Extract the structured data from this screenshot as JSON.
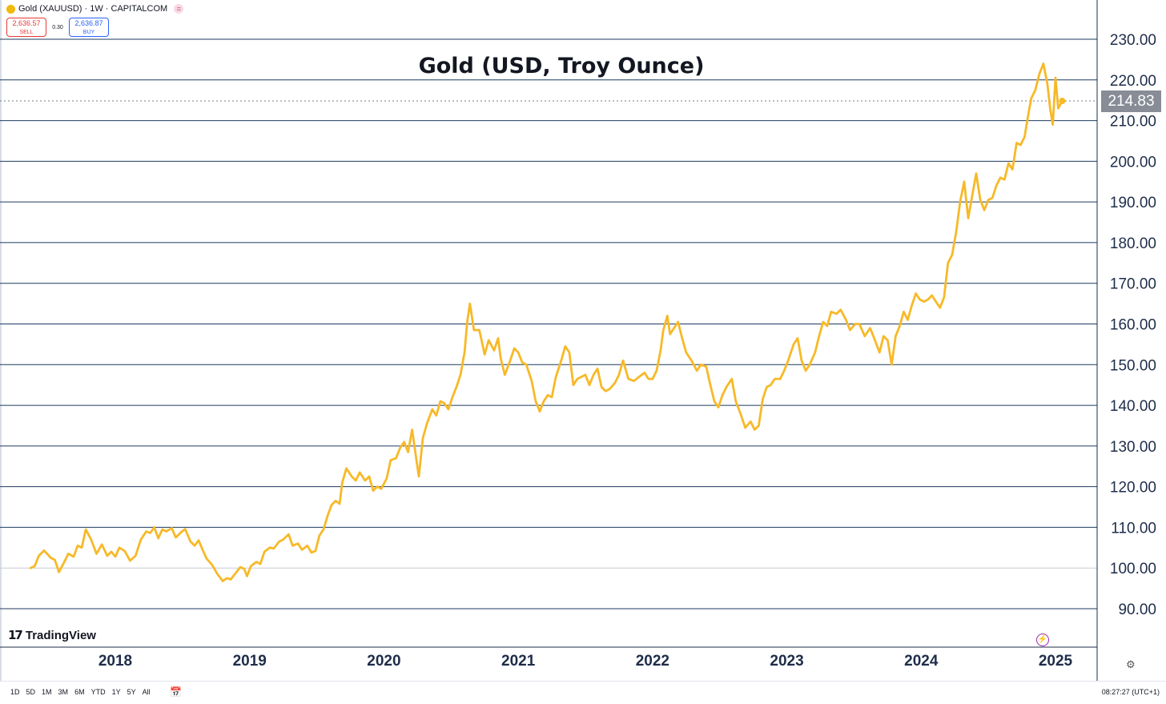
{
  "header": {
    "symbol_line": "Gold (XAUUSD) · 1W · CAPITALCOM",
    "sell_price": "2,636.57",
    "sell_label": "SELL",
    "spread": "0.30",
    "buy_price": "2,636.87",
    "buy_label": "BUY"
  },
  "chart_data": {
    "type": "line",
    "title": "Gold (USD, Troy Ounce)",
    "xlabel": "",
    "ylabel": "",
    "ylim": [
      81,
      233
    ],
    "y_ticks": [
      "230.00",
      "220.00",
      "210.00",
      "200.00",
      "190.00",
      "180.00",
      "170.00",
      "160.00",
      "150.00",
      "140.00",
      "130.00",
      "120.00",
      "110.00",
      "100.00",
      "90.00"
    ],
    "x_ticks": [
      {
        "label": "2018",
        "date": "2018.00"
      },
      {
        "label": "2019",
        "date": "2019.00"
      },
      {
        "label": "2020",
        "date": "2020.00"
      },
      {
        "label": "2021",
        "date": "2021.00"
      },
      {
        "label": "2022",
        "date": "2022.00"
      },
      {
        "label": "2023",
        "date": "2023.00"
      },
      {
        "label": "2024",
        "date": "2024.00"
      },
      {
        "label": "2025",
        "date": "2025.00"
      }
    ],
    "xlim": [
      "2017.20",
      "2025.60"
    ],
    "last_value_label": "214.83",
    "grid": true,
    "line_color": "#f7b928",
    "series": [
      {
        "name": "",
        "points": [
          [
            "2017.37",
            100.0
          ],
          [
            "2017.40",
            100.5
          ],
          [
            "2017.43",
            103.0
          ],
          [
            "2017.47",
            104.3
          ],
          [
            "2017.52",
            102.5
          ],
          [
            "2017.55",
            102.0
          ],
          [
            "2017.58",
            99.0
          ],
          [
            "2017.62",
            101.5
          ],
          [
            "2017.65",
            103.5
          ],
          [
            "2017.69",
            102.8
          ],
          [
            "2017.72",
            105.5
          ],
          [
            "2017.75",
            105.0
          ],
          [
            "2017.78",
            109.5
          ],
          [
            "2017.82",
            107.0
          ],
          [
            "2017.86",
            103.5
          ],
          [
            "2017.90",
            105.8
          ],
          [
            "2017.94",
            103.0
          ],
          [
            "2017.97",
            104.0
          ],
          [
            "2018.00",
            102.8
          ],
          [
            "2018.03",
            105.0
          ],
          [
            "2018.07",
            104.2
          ],
          [
            "2018.11",
            101.8
          ],
          [
            "2018.15",
            103.0
          ],
          [
            "2018.19",
            107.0
          ],
          [
            "2018.23",
            109.0
          ],
          [
            "2018.26",
            108.6
          ],
          [
            "2018.29",
            110.0
          ],
          [
            "2018.32",
            107.3
          ],
          [
            "2018.35",
            109.5
          ],
          [
            "2018.38",
            109.0
          ],
          [
            "2018.42",
            109.8
          ],
          [
            "2018.45",
            107.5
          ],
          [
            "2018.49",
            108.8
          ],
          [
            "2018.52",
            109.6
          ],
          [
            "2018.56",
            106.5
          ],
          [
            "2018.59",
            105.5
          ],
          [
            "2018.62",
            106.8
          ],
          [
            "2018.65",
            104.5
          ],
          [
            "2018.68",
            102.3
          ],
          [
            "2018.72",
            100.8
          ],
          [
            "2018.76",
            98.5
          ],
          [
            "2018.80",
            96.8
          ],
          [
            "2018.83",
            97.5
          ],
          [
            "2018.86",
            97.2
          ],
          [
            "2018.89",
            98.5
          ],
          [
            "2018.93",
            100.2
          ],
          [
            "2018.96",
            99.8
          ],
          [
            "2018.98",
            98.0
          ],
          [
            "2019.01",
            100.5
          ],
          [
            "2019.05",
            101.5
          ],
          [
            "2019.08",
            101.0
          ],
          [
            "2019.11",
            104.0
          ],
          [
            "2019.15",
            105.0
          ],
          [
            "2019.18",
            104.8
          ],
          [
            "2019.22",
            106.5
          ],
          [
            "2019.25",
            107.0
          ],
          [
            "2019.29",
            108.3
          ],
          [
            "2019.32",
            105.5
          ],
          [
            "2019.36",
            106.0
          ],
          [
            "2019.39",
            104.5
          ],
          [
            "2019.43",
            105.5
          ],
          [
            "2019.46",
            103.8
          ],
          [
            "2019.49",
            104.2
          ],
          [
            "2019.52",
            108.0
          ],
          [
            "2019.55",
            109.5
          ],
          [
            "2019.58",
            112.8
          ],
          [
            "2019.61",
            115.5
          ],
          [
            "2019.64",
            116.5
          ],
          [
            "2019.67",
            115.8
          ],
          [
            "2019.69",
            121.0
          ],
          [
            "2019.72",
            124.5
          ],
          [
            "2019.76",
            122.5
          ],
          [
            "2019.79",
            121.5
          ],
          [
            "2019.82",
            123.5
          ],
          [
            "2019.86",
            121.5
          ],
          [
            "2019.89",
            122.5
          ],
          [
            "2019.92",
            119.0
          ],
          [
            "2019.95",
            120.0
          ],
          [
            "2019.98",
            119.5
          ],
          [
            "2020.02",
            122.0
          ],
          [
            "2020.05",
            126.5
          ],
          [
            "2020.09",
            127.0
          ],
          [
            "2020.12",
            129.5
          ],
          [
            "2020.15",
            131.0
          ],
          [
            "2020.18",
            128.5
          ],
          [
            "2020.21",
            134.0
          ],
          [
            "2020.24",
            127.0
          ],
          [
            "2020.26",
            122.5
          ],
          [
            "2020.29",
            132.0
          ],
          [
            "2020.32",
            135.5
          ],
          [
            "2020.36",
            139.0
          ],
          [
            "2020.39",
            137.5
          ],
          [
            "2020.42",
            141.0
          ],
          [
            "2020.45",
            140.5
          ],
          [
            "2020.48",
            139.0
          ],
          [
            "2020.51",
            142.0
          ],
          [
            "2020.54",
            144.5
          ],
          [
            "2020.57",
            147.5
          ],
          [
            "2020.60",
            153.0
          ],
          [
            "2020.62",
            160.5
          ],
          [
            "2020.64",
            165.0
          ],
          [
            "2020.67",
            158.5
          ],
          [
            "2020.71",
            158.5
          ],
          [
            "2020.75",
            152.5
          ],
          [
            "2020.78",
            156.0
          ],
          [
            "2020.82",
            153.5
          ],
          [
            "2020.85",
            156.5
          ],
          [
            "2020.87",
            151.5
          ],
          [
            "2020.90",
            147.5
          ],
          [
            "2020.94",
            151.0
          ],
          [
            "2020.97",
            154.0
          ],
          [
            "2021.00",
            153.0
          ],
          [
            "2021.03",
            150.5
          ],
          [
            "2021.06",
            150.0
          ],
          [
            "2021.10",
            146.0
          ],
          [
            "2021.13",
            141.0
          ],
          [
            "2021.16",
            138.5
          ],
          [
            "2021.19",
            141.0
          ],
          [
            "2021.22",
            142.5
          ],
          [
            "2021.25",
            142.0
          ],
          [
            "2021.28",
            147.0
          ],
          [
            "2021.32",
            151.0
          ],
          [
            "2021.35",
            154.5
          ],
          [
            "2021.38",
            153.0
          ],
          [
            "2021.41",
            145.0
          ],
          [
            "2021.44",
            146.5
          ],
          [
            "2021.47",
            147.0
          ],
          [
            "2021.50",
            147.5
          ],
          [
            "2021.53",
            145.0
          ],
          [
            "2021.56",
            147.5
          ],
          [
            "2021.59",
            149.0
          ],
          [
            "2021.62",
            144.5
          ],
          [
            "2021.65",
            143.5
          ],
          [
            "2021.68",
            144.0
          ],
          [
            "2021.72",
            145.5
          ],
          [
            "2021.75",
            147.5
          ],
          [
            "2021.78",
            151.0
          ],
          [
            "2021.82",
            146.5
          ],
          [
            "2021.86",
            146.0
          ],
          [
            "2021.90",
            147.0
          ],
          [
            "2021.94",
            148.0
          ],
          [
            "2021.97",
            146.5
          ],
          [
            "2022.00",
            146.5
          ],
          [
            "2022.03",
            148.5
          ],
          [
            "2022.06",
            153.5
          ],
          [
            "2022.08",
            158.5
          ],
          [
            "2022.11",
            162.0
          ],
          [
            "2022.13",
            157.5
          ],
          [
            "2022.16",
            159.0
          ],
          [
            "2022.19",
            160.5
          ],
          [
            "2022.22",
            156.5
          ],
          [
            "2022.25",
            153.0
          ],
          [
            "2022.29",
            151.0
          ],
          [
            "2022.33",
            148.5
          ],
          [
            "2022.36",
            150.0
          ],
          [
            "2022.40",
            149.5
          ],
          [
            "2022.43",
            145.0
          ],
          [
            "2022.46",
            141.0
          ],
          [
            "2022.49",
            139.5
          ],
          [
            "2022.52",
            142.5
          ],
          [
            "2022.55",
            144.5
          ],
          [
            "2022.59",
            146.5
          ],
          [
            "2022.62",
            141.0
          ],
          [
            "2022.66",
            137.5
          ],
          [
            "2022.69",
            134.5
          ],
          [
            "2022.73",
            136.0
          ],
          [
            "2022.76",
            134.0
          ],
          [
            "2022.79",
            135.0
          ],
          [
            "2022.82",
            141.5
          ],
          [
            "2022.85",
            144.5
          ],
          [
            "2022.88",
            145.0
          ],
          [
            "2022.91",
            146.5
          ],
          [
            "2022.95",
            146.5
          ],
          [
            "2022.98",
            148.5
          ],
          [
            "2023.01",
            151.0
          ],
          [
            "2023.05",
            155.0
          ],
          [
            "2023.08",
            156.5
          ],
          [
            "2023.11",
            151.0
          ],
          [
            "2023.14",
            148.5
          ],
          [
            "2023.17",
            150.0
          ],
          [
            "2023.21",
            153.0
          ],
          [
            "2023.24",
            157.0
          ],
          [
            "2023.27",
            160.5
          ],
          [
            "2023.30",
            159.5
          ],
          [
            "2023.33",
            163.0
          ],
          [
            "2023.37",
            162.5
          ],
          [
            "2023.40",
            163.5
          ],
          [
            "2023.44",
            161.0
          ],
          [
            "2023.47",
            158.5
          ],
          [
            "2023.51",
            160.0
          ],
          [
            "2023.54",
            160.0
          ],
          [
            "2023.58",
            157.0
          ],
          [
            "2023.62",
            159.0
          ],
          [
            "2023.65",
            156.5
          ],
          [
            "2023.69",
            153.0
          ],
          [
            "2023.72",
            157.0
          ],
          [
            "2023.75",
            156.0
          ],
          [
            "2023.78",
            150.0
          ],
          [
            "2023.81",
            157.0
          ],
          [
            "2023.84",
            159.5
          ],
          [
            "2023.87",
            163.0
          ],
          [
            "2023.90",
            161.0
          ],
          [
            "2023.93",
            164.5
          ],
          [
            "2023.96",
            167.5
          ],
          [
            "2023.99",
            166.0
          ],
          [
            "2024.02",
            165.5
          ],
          [
            "2024.05",
            166.0
          ],
          [
            "2024.08",
            167.0
          ],
          [
            "2024.11",
            165.5
          ],
          [
            "2024.14",
            164.0
          ],
          [
            "2024.17",
            166.5
          ],
          [
            "2024.20",
            175.0
          ],
          [
            "2024.23",
            177.0
          ],
          [
            "2024.26",
            182.5
          ],
          [
            "2024.29",
            190.0
          ],
          [
            "2024.32",
            195.0
          ],
          [
            "2024.35",
            186.0
          ],
          [
            "2024.38",
            191.5
          ],
          [
            "2024.41",
            197.0
          ],
          [
            "2024.44",
            190.5
          ],
          [
            "2024.47",
            188.0
          ],
          [
            "2024.50",
            190.5
          ],
          [
            "2024.53",
            191.0
          ],
          [
            "2024.56",
            194.0
          ],
          [
            "2024.59",
            196.0
          ],
          [
            "2024.62",
            195.5
          ],
          [
            "2024.65",
            199.5
          ],
          [
            "2024.68",
            198.0
          ],
          [
            "2024.71",
            204.5
          ],
          [
            "2024.74",
            204.0
          ],
          [
            "2024.77",
            206.0
          ],
          [
            "2024.80",
            212.0
          ],
          [
            "2024.82",
            215.5
          ],
          [
            "2024.85",
            217.5
          ],
          [
            "2024.88",
            221.5
          ],
          [
            "2024.91",
            224.0
          ],
          [
            "2024.94",
            219.0
          ],
          [
            "2024.96",
            213.0
          ],
          [
            "2024.98",
            209.0
          ],
          [
            "2025.00",
            220.5
          ],
          [
            "2025.02",
            213.0
          ],
          [
            "2025.05",
            214.83
          ]
        ]
      }
    ]
  },
  "footer": {
    "logo_text": "TradingView",
    "ranges": [
      "1D",
      "5D",
      "1M",
      "3M",
      "6M",
      "YTD",
      "1Y",
      "5Y",
      "All"
    ],
    "clock": "08:27:27 (UTC+1)"
  }
}
